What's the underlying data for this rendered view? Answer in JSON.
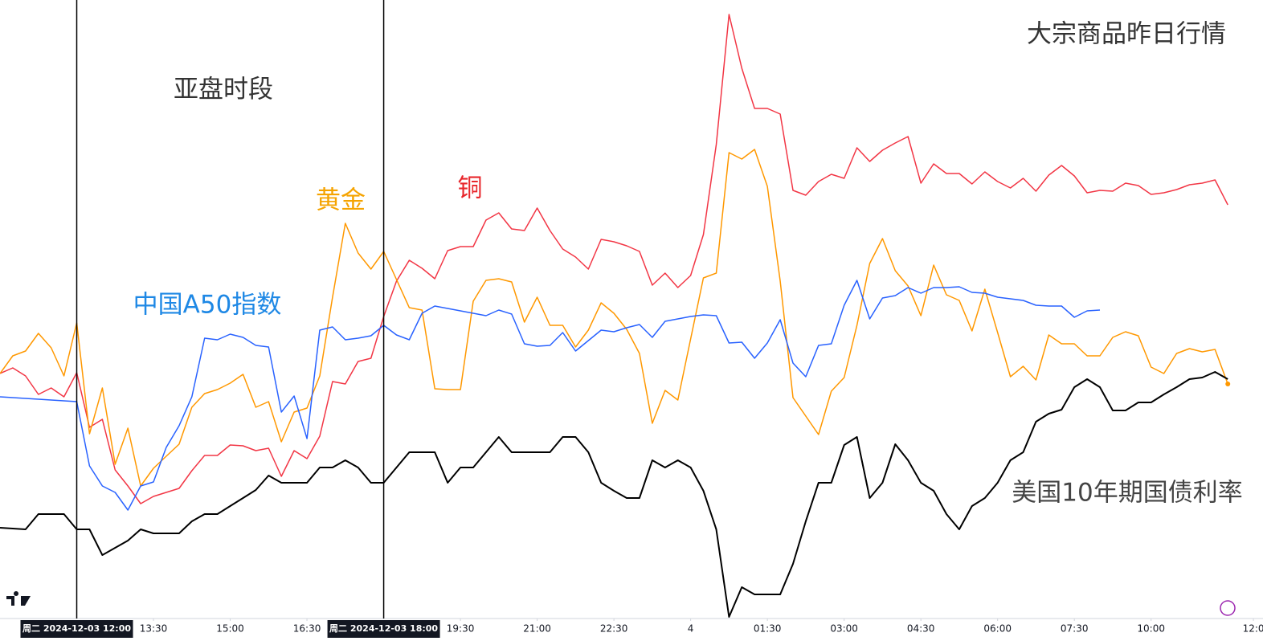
{
  "chart_data": {
    "type": "line",
    "title": "大宗商品昨日行情",
    "annotations": [
      {
        "text": "亚盘时段",
        "color": "#333333"
      },
      {
        "text": "黄金",
        "color": "#f5a300"
      },
      {
        "text": "铜",
        "color": "#e8262b"
      },
      {
        "text": "中国A50指数",
        "color": "#1e88e5"
      },
      {
        "text": "美国10年期国债利率",
        "color": "#444444"
      }
    ],
    "x": [
      0,
      1,
      2,
      3,
      4,
      5,
      6,
      7,
      8,
      9,
      10,
      11,
      12,
      13,
      14,
      15,
      16,
      17,
      18,
      19,
      20,
      21,
      22,
      23,
      24,
      25,
      26,
      27,
      28,
      29,
      30,
      31,
      32,
      33,
      34,
      35,
      36,
      37,
      38,
      39,
      40,
      41,
      42,
      43,
      44,
      45,
      46,
      47,
      48,
      49,
      50,
      51,
      52,
      53,
      54,
      55,
      56,
      57,
      58,
      59,
      60,
      61,
      62,
      63,
      64,
      65,
      66,
      67,
      68,
      69,
      70,
      71,
      72,
      73,
      74,
      75,
      76,
      77,
      78,
      79,
      80,
      81,
      82,
      83,
      84,
      85,
      86,
      87,
      88,
      89,
      90,
      91,
      92,
      93,
      94,
      95,
      96
    ],
    "xlim": [
      0,
      98.75
    ],
    "ylim": [
      0,
      770
    ],
    "xticks": [
      {
        "value": 12,
        "label": "13:30"
      },
      {
        "value": 18,
        "label": "15:00"
      },
      {
        "value": 24,
        "label": "16:30"
      },
      {
        "value": 36,
        "label": "19:30"
      },
      {
        "value": 42,
        "label": "21:00"
      },
      {
        "value": 48,
        "label": "22:30"
      },
      {
        "value": 54,
        "label": "4"
      },
      {
        "value": 60,
        "label": "01:30"
      },
      {
        "value": 66,
        "label": "03:00"
      },
      {
        "value": 72,
        "label": "04:30"
      },
      {
        "value": 78,
        "label": "06:00"
      },
      {
        "value": 84,
        "label": "07:30"
      },
      {
        "value": 90,
        "label": "10:00"
      },
      {
        "value": 98,
        "label": "12:0"
      }
    ],
    "session_markers": [
      {
        "value": 6,
        "label": "周二 2024-12-03   12:00"
      },
      {
        "value": 30,
        "label": "周二 2024-12-03   18:00"
      }
    ],
    "series": [
      {
        "name": "铜",
        "color": "#f23645",
        "values": [
          305,
          312,
          302,
          279,
          287,
          276,
          306,
          238,
          248,
          185,
          165,
          143,
          152,
          157,
          162,
          184,
          203,
          203,
          216,
          215,
          209,
          212,
          177,
          209,
          199,
          227,
          295,
          292,
          320,
          324,
          376,
          420,
          446,
          436,
          423,
          458,
          463,
          463,
          496,
          505,
          485,
          483,
          511,
          483,
          460,
          450,
          435,
          472,
          469,
          464,
          457,
          415,
          430,
          412,
          427,
          478,
          590,
          752,
          685,
          635,
          635,
          628,
          533,
          527,
          544,
          553,
          548,
          586,
          569,
          583,
          592,
          600,
          542,
          566,
          554,
          554,
          541,
          556,
          544,
          536,
          548,
          532,
          552,
          564,
          551,
          530,
          533,
          532,
          542,
          539,
          528,
          530,
          534,
          540,
          542,
          546,
          515
        ]
      },
      {
        "name": "黄金",
        "color": "#ff9800",
        "end_dot": true,
        "values": [
          305,
          327,
          333,
          355,
          337,
          302,
          368,
          230,
          287,
          192,
          237,
          165,
          187,
          202,
          217,
          263,
          280,
          285,
          293,
          304,
          263,
          270,
          220,
          257,
          262,
          302,
          400,
          492,
          455,
          435,
          457,
          422,
          387,
          384,
          286,
          285,
          285,
          395,
          421,
          423,
          419,
          369,
          400,
          365,
          365,
          338,
          359,
          393,
          380,
          360,
          330,
          243,
          284,
          272,
          348,
          424,
          430,
          580,
          572,
          584,
          538,
          420,
          275,
          252,
          229,
          283,
          300,
          365,
          442,
          473,
          433,
          414,
          377,
          440,
          403,
          396,
          358,
          410,
          356,
          301,
          314,
          297,
          353,
          342,
          342,
          327,
          327,
          350,
          357,
          352,
          313,
          305,
          330,
          336,
          332,
          335,
          292
        ]
      },
      {
        "name": "中国A50指数",
        "color": "#2962ff",
        "values": [
          276,
          275,
          274,
          273,
          272,
          271,
          270,
          190,
          165,
          157,
          135,
          165,
          170,
          213,
          240,
          276,
          349,
          347,
          354,
          350,
          340,
          338,
          257,
          277,
          224,
          359,
          363,
          347,
          349,
          352,
          365,
          353,
          347,
          380,
          389,
          386,
          383,
          380,
          377,
          384,
          379,
          342,
          339,
          340,
          356,
          333,
          346,
          359,
          357,
          362,
          366,
          350,
          370,
          373,
          376,
          378,
          377,
          343,
          344,
          324,
          343,
          372,
          318,
          301,
          340,
          342,
          390,
          421,
          373,
          399,
          402,
          412,
          405,
          412,
          412,
          413,
          406,
          405,
          400,
          398,
          396,
          390,
          389,
          389,
          375,
          383,
          384,
          null,
          null,
          null,
          null,
          null,
          null,
          null,
          null,
          null,
          null
        ]
      },
      {
        "name": "美国10年期国债利率",
        "color": "#000000",
        "values": [
          113,
          112,
          111,
          130,
          130,
          130,
          111,
          111,
          79,
          88,
          97,
          111,
          106,
          106,
          106,
          121,
          130,
          130,
          140,
          150,
          160,
          178,
          169,
          169,
          169,
          188,
          188,
          197,
          188,
          169,
          169,
          188,
          207,
          207,
          207,
          169,
          188,
          188,
          207,
          226,
          207,
          207,
          207,
          207,
          226,
          226,
          207,
          169,
          159,
          150,
          150,
          197,
          188,
          197,
          188,
          159,
          111,
          2,
          39,
          30,
          30,
          30,
          68,
          121,
          169,
          169,
          216,
          226,
          150,
          169,
          217,
          197,
          169,
          159,
          130,
          111,
          140,
          150,
          169,
          197,
          207,
          245,
          255,
          260,
          288,
          298,
          288,
          259,
          259,
          269,
          269,
          279,
          288,
          298,
          300,
          307,
          298
        ]
      }
    ]
  }
}
